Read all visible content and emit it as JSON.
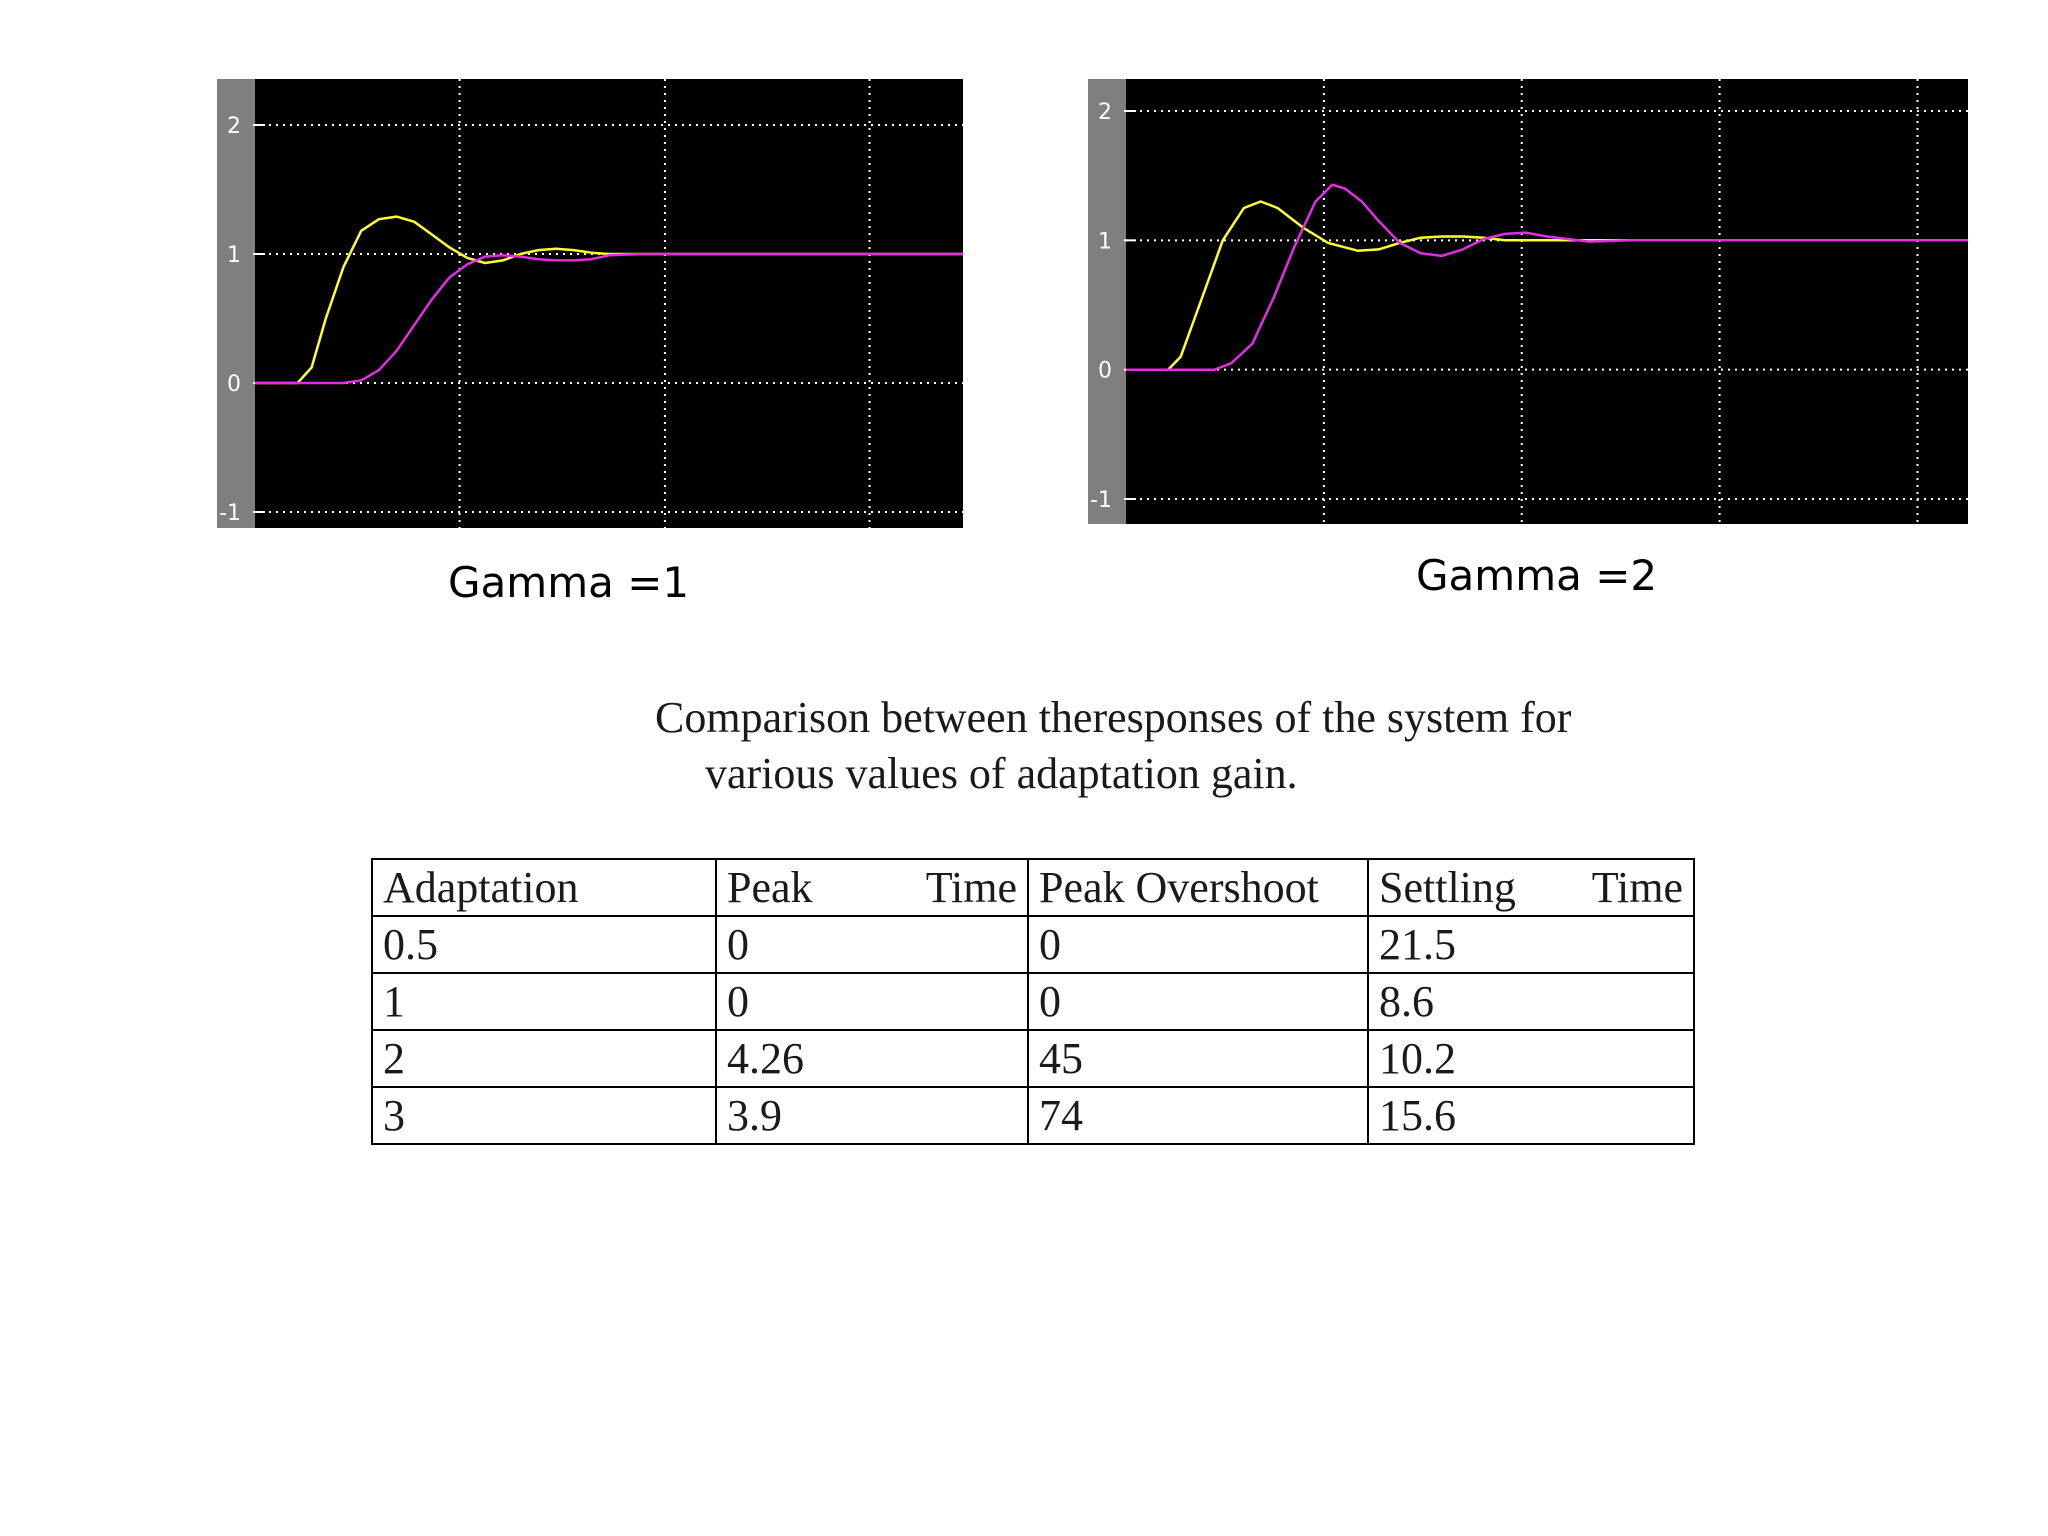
{
  "charts": [
    {
      "caption": "Gamma =1"
    },
    {
      "caption": "Gamma =2"
    }
  ],
  "chart_data": [
    {
      "type": "line",
      "title": "Gamma =1",
      "xlabel": "",
      "ylabel": "",
      "xlim": [
        0,
        20
      ],
      "ylim": [
        -1,
        2
      ],
      "yticks": [
        "2",
        "1",
        "0",
        "-1"
      ],
      "grid": true,
      "background": "#000000",
      "series": [
        {
          "color": "#ffff33",
          "x": [
            0,
            1.2,
            1.6,
            2.0,
            2.5,
            3.0,
            3.5,
            4.0,
            4.5,
            5.0,
            5.5,
            6.0,
            6.5,
            7.0,
            7.5,
            8.0,
            8.5,
            9.0,
            9.5,
            10,
            20
          ],
          "y": [
            0,
            0,
            0.12,
            0.5,
            0.9,
            1.18,
            1.27,
            1.29,
            1.25,
            1.15,
            1.05,
            0.97,
            0.93,
            0.95,
            1.0,
            1.03,
            1.04,
            1.03,
            1.01,
            1.0,
            1.0
          ]
        },
        {
          "color": "#e22ee2",
          "x": [
            0,
            2.5,
            3.0,
            3.5,
            4.0,
            4.5,
            5.0,
            5.5,
            6.0,
            6.5,
            7.0,
            7.5,
            8.0,
            8.5,
            9.0,
            9.5,
            10.0,
            11,
            20
          ],
          "y": [
            0,
            0,
            0.02,
            0.1,
            0.25,
            0.45,
            0.65,
            0.82,
            0.92,
            0.98,
            0.99,
            0.98,
            0.96,
            0.95,
            0.95,
            0.96,
            0.99,
            1.0,
            1.0
          ]
        }
      ]
    },
    {
      "type": "line",
      "title": "Gamma =2",
      "xlabel": "",
      "ylabel": "",
      "xlim": [
        0,
        20
      ],
      "ylim": [
        -1,
        2
      ],
      "yticks": [
        "2",
        "1",
        "0",
        "-1"
      ],
      "grid": true,
      "background": "#000000",
      "series": [
        {
          "color": "#ffff33",
          "x": [
            0,
            1.0,
            1.3,
            1.8,
            2.3,
            2.8,
            3.2,
            3.6,
            4.2,
            4.8,
            5.5,
            6.0,
            6.5,
            7.0,
            7.5,
            8.0,
            8.5,
            9.0,
            10.0,
            11.0,
            20
          ],
          "y": [
            0,
            0,
            0.1,
            0.55,
            1.0,
            1.25,
            1.3,
            1.25,
            1.1,
            0.98,
            0.92,
            0.93,
            0.98,
            1.02,
            1.03,
            1.03,
            1.02,
            1.0,
            1.0,
            1.0,
            1.0
          ]
        },
        {
          "color": "#e22ee2",
          "x": [
            0,
            2.1,
            2.5,
            3.0,
            3.5,
            4.0,
            4.5,
            4.9,
            5.2,
            5.6,
            6.0,
            6.5,
            7.0,
            7.5,
            8.0,
            8.5,
            9.0,
            9.5,
            10.0,
            11.0,
            12.0,
            20
          ],
          "y": [
            0,
            0,
            0.05,
            0.2,
            0.55,
            0.95,
            1.3,
            1.43,
            1.4,
            1.3,
            1.15,
            0.98,
            0.9,
            0.88,
            0.93,
            1.01,
            1.05,
            1.06,
            1.03,
            0.99,
            1.0,
            1.0
          ]
        }
      ]
    }
  ],
  "table": {
    "title_line1": "Comparison between theresponses of the system for",
    "title_line2": "various values of adaptation gain.",
    "headers": [
      "Adaptation",
      "Peak",
      "Time",
      "Peak Overshoot",
      "Settling",
      "Time"
    ],
    "rows": [
      [
        "0.5",
        "0",
        "0",
        "21.5"
      ],
      [
        "1",
        "0",
        "0",
        "8.6"
      ],
      [
        "2",
        "4.26",
        "45",
        "10.2"
      ],
      [
        "3",
        "3.9",
        "74",
        "15.6"
      ]
    ]
  }
}
